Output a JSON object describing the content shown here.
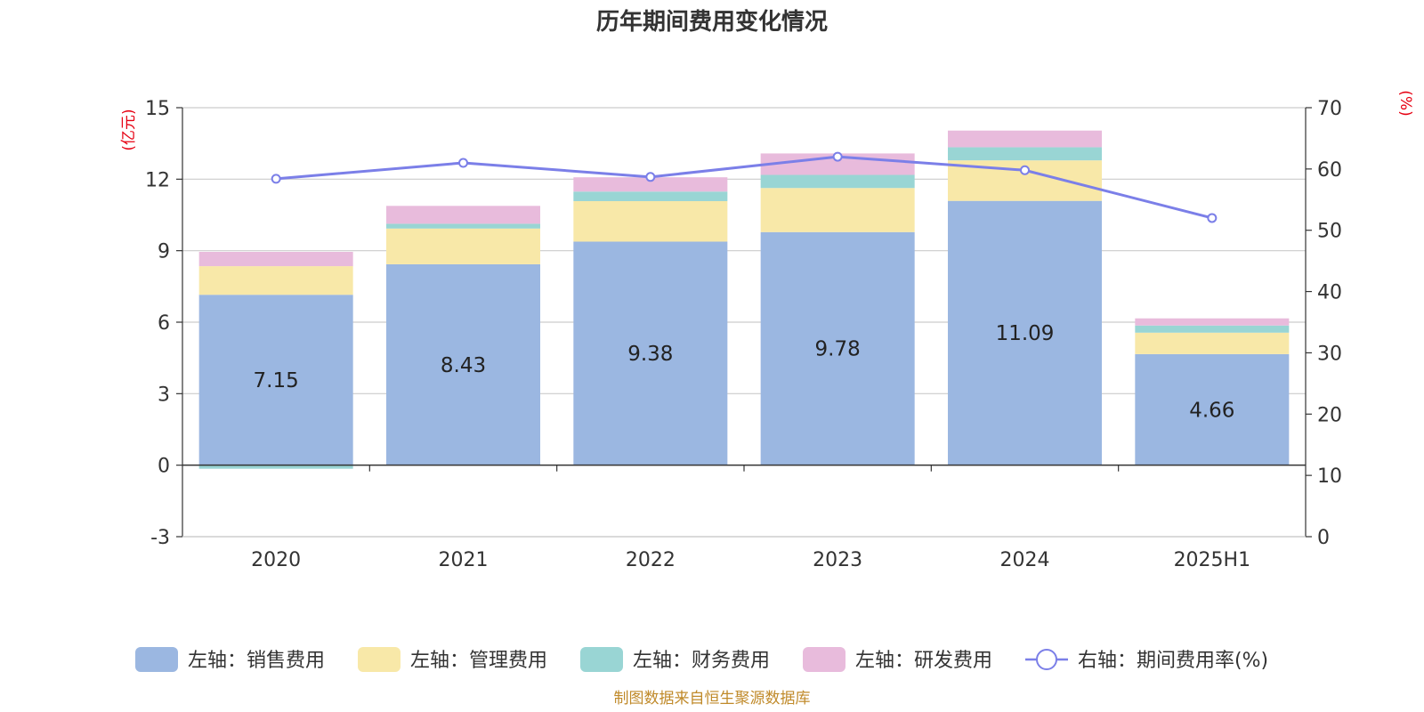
{
  "chart_data": {
    "type": "bar",
    "title": "历年期间费用变化情况",
    "categories": [
      "2020",
      "2021",
      "2022",
      "2023",
      "2024",
      "2025H1"
    ],
    "left_axis": {
      "unit_label": "(亿元)",
      "ticks": [
        15,
        12,
        9,
        6,
        3,
        0,
        -3
      ],
      "range": [
        -3,
        15
      ]
    },
    "right_axis": {
      "unit_label": "(%)",
      "ticks": [
        70,
        60,
        50,
        40,
        30,
        20,
        10,
        0
      ],
      "range": [
        0,
        70
      ]
    },
    "grid": true,
    "series": [
      {
        "name": "左轴：销售费用",
        "type": "bar",
        "stack": "total",
        "color": "#9bb7e1",
        "values": [
          7.15,
          8.43,
          9.38,
          9.78,
          11.09,
          4.66
        ],
        "labels": [
          "7.15",
          "8.43",
          "9.38",
          "9.78",
          "11.09",
          "4.66"
        ]
      },
      {
        "name": "左轴：管理费用",
        "type": "bar",
        "stack": "total",
        "color": "#f8e8a8",
        "values": [
          1.2,
          1.5,
          1.7,
          1.85,
          1.7,
          0.9
        ]
      },
      {
        "name": "左轴：财务费用",
        "type": "bar",
        "stack": "total",
        "color": "#99d5d4",
        "values": [
          -0.15,
          0.2,
          0.4,
          0.55,
          0.55,
          0.3
        ]
      },
      {
        "name": "左轴：研发费用",
        "type": "bar",
        "stack": "total",
        "color": "#e8bbdc",
        "values": [
          0.6,
          0.75,
          0.6,
          0.9,
          0.7,
          0.3
        ]
      },
      {
        "name": "右轴：期间费用率(%)",
        "type": "line",
        "axis": "right",
        "color": "#7b7fe8",
        "values": [
          58.4,
          61.0,
          58.7,
          62.0,
          59.8,
          52.0
        ]
      }
    ],
    "legend_position": "bottom"
  },
  "source": "制图数据来自恒生聚源数据库"
}
